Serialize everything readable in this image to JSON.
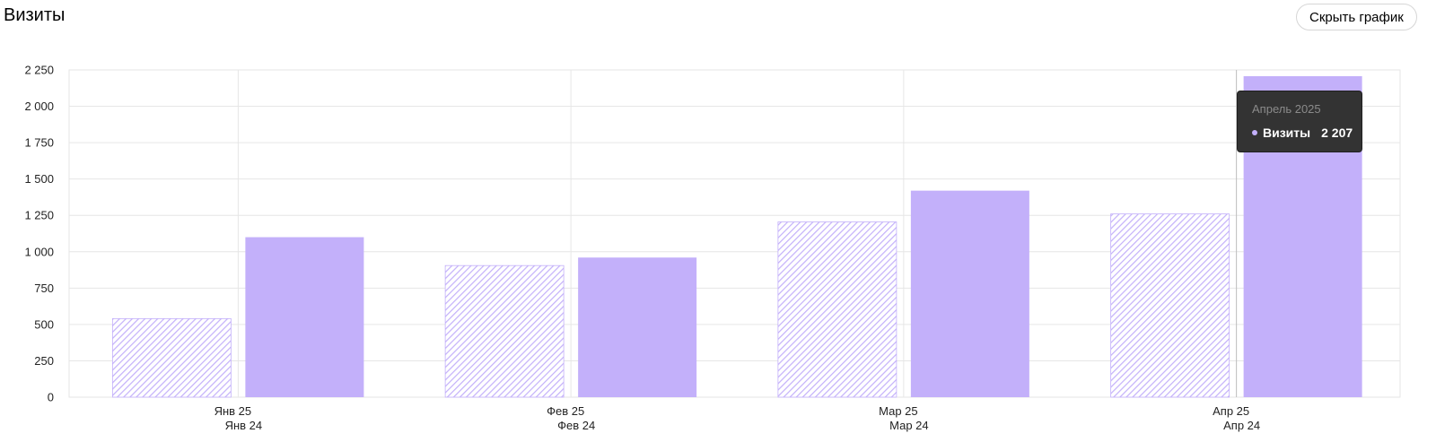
{
  "header": {
    "title": "Визиты",
    "hide_chart_label": "Скрыть график"
  },
  "tooltip": {
    "period": "Апрель 2025",
    "series_label": "Визиты",
    "value": "2 207"
  },
  "colors": {
    "bar": "#c3b0fa",
    "hatch": "#c3b0fa",
    "grid": "#e6e6e6",
    "tooltip_bg": "#333333"
  },
  "chart_data": {
    "type": "bar",
    "categories": [
      {
        "current": "Янв 25",
        "previous": "Янв 24"
      },
      {
        "current": "Фев 25",
        "previous": "Фев 24"
      },
      {
        "current": "Мар 25",
        "previous": "Мар 24"
      },
      {
        "current": "Апр 25",
        "previous": "Апр 24"
      }
    ],
    "series": [
      {
        "style": "hatched",
        "values": [
          540,
          905,
          1205,
          1260
        ]
      },
      {
        "name": "Визиты",
        "style": "solid",
        "values": [
          1100,
          960,
          1420,
          2207
        ]
      }
    ],
    "yticks": [
      "0",
      "250",
      "500",
      "750",
      "1 000",
      "1 250",
      "1 500",
      "1 750",
      "2 000",
      "2 250"
    ],
    "ylim": [
      0,
      2250
    ],
    "grid": true,
    "highlighted_category": 3
  }
}
